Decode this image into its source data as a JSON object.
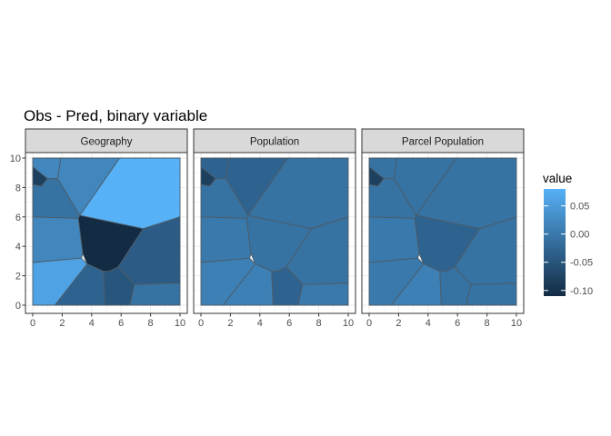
{
  "chart_data": {
    "type": "heatmap",
    "title": "Obs - Pred, binary variable",
    "xlabel": "",
    "ylabel": "",
    "xlim": [
      0,
      10
    ],
    "ylim": [
      0,
      10
    ],
    "x_ticks": [
      0,
      2,
      4,
      6,
      8,
      10
    ],
    "y_ticks": [
      0,
      2,
      4,
      6,
      8,
      10
    ],
    "grid": true,
    "legend": {
      "title": "value",
      "position": "right",
      "range": [
        -0.11,
        0.08
      ],
      "ticks": [
        0.05,
        0.0,
        -0.05,
        -0.1
      ],
      "tick_labels": [
        "0.05",
        "0.00",
        "-0.05",
        "-0.10"
      ],
      "low_color": "#132B43",
      "high_color": "#56B1F7"
    },
    "panels": [
      {
        "label": "Geography",
        "cells": [
          {
            "polygon": [
              [
                0,
                10
              ],
              [
                1.9,
                10
              ],
              [
                1.7,
                8.6
              ],
              [
                1,
                8.6
              ],
              [
                0,
                9.4
              ]
            ],
            "value": 0.02
          },
          {
            "polygon": [
              [
                0,
                9.4
              ],
              [
                1,
                8.6
              ],
              [
                0.6,
                8.1
              ],
              [
                0,
                8.2
              ]
            ],
            "value": -0.08
          },
          {
            "polygon": [
              [
                0,
                8.2
              ],
              [
                0.6,
                8.1
              ],
              [
                1,
                8.6
              ],
              [
                1.7,
                8.6
              ],
              [
                3.2,
                6.1
              ],
              [
                3.1,
                5.9
              ],
              [
                0,
                6
              ]
            ],
            "value": -0.01
          },
          {
            "polygon": [
              [
                1.9,
                10
              ],
              [
                5.9,
                10
              ],
              [
                3.2,
                6.1
              ],
              [
                1.7,
                8.6
              ]
            ],
            "value": 0.02
          },
          {
            "polygon": [
              [
                5.9,
                10
              ],
              [
                10,
                10
              ],
              [
                10,
                6
              ],
              [
                7.5,
                5.2
              ],
              [
                3.2,
                6.1
              ]
            ],
            "value": 0.08
          },
          {
            "polygon": [
              [
                0,
                6
              ],
              [
                3.1,
                5.9
              ],
              [
                3.4,
                3.5
              ],
              [
                3.3,
                3.2
              ],
              [
                0,
                2.9
              ]
            ],
            "value": 0.02
          },
          {
            "polygon": [
              [
                3.1,
                5.9
              ],
              [
                3.2,
                6.1
              ],
              [
                7.5,
                5.2
              ],
              [
                5.8,
                2.6
              ],
              [
                5.2,
                2.3
              ],
              [
                4.8,
                2.3
              ],
              [
                3.7,
                2.8
              ],
              [
                3.4,
                3.5
              ]
            ],
            "value": -0.11
          },
          {
            "polygon": [
              [
                7.5,
                5.2
              ],
              [
                10,
                6
              ],
              [
                10,
                1.5
              ],
              [
                6.9,
                1.4
              ],
              [
                5.8,
                2.6
              ]
            ],
            "value": -0.04
          },
          {
            "polygon": [
              [
                0,
                2.9
              ],
              [
                3.3,
                3.2
              ],
              [
                3.7,
                2.8
              ],
              [
                1.5,
                0
              ],
              [
                0,
                0
              ]
            ],
            "value": 0.06
          },
          {
            "polygon": [
              [
                3.7,
                2.8
              ],
              [
                4.8,
                2.3
              ],
              [
                4.9,
                0
              ],
              [
                1.5,
                0
              ]
            ],
            "value": -0.03
          },
          {
            "polygon": [
              [
                4.8,
                2.3
              ],
              [
                5.2,
                2.3
              ],
              [
                5.8,
                2.6
              ],
              [
                6.9,
                1.4
              ],
              [
                6.6,
                0
              ],
              [
                4.9,
                0
              ]
            ],
            "value": -0.05
          },
          {
            "polygon": [
              [
                6.9,
                1.4
              ],
              [
                10,
                1.5
              ],
              [
                10,
                0
              ],
              [
                6.6,
                0
              ]
            ],
            "value": -0.01
          }
        ]
      },
      {
        "label": "Population",
        "cells": [
          {
            "polygon": [
              [
                0,
                10
              ],
              [
                1.9,
                10
              ],
              [
                1.7,
                8.6
              ],
              [
                1,
                8.6
              ],
              [
                0,
                9.4
              ]
            ],
            "value": -0.03
          },
          {
            "polygon": [
              [
                0,
                9.4
              ],
              [
                1,
                8.6
              ],
              [
                0.6,
                8.1
              ],
              [
                0,
                8.2
              ]
            ],
            "value": -0.08
          },
          {
            "polygon": [
              [
                0,
                8.2
              ],
              [
                0.6,
                8.1
              ],
              [
                1,
                8.6
              ],
              [
                1.7,
                8.6
              ],
              [
                3.2,
                6.1
              ],
              [
                3.1,
                5.9
              ],
              [
                0,
                6
              ]
            ],
            "value": -0.01
          },
          {
            "polygon": [
              [
                1.9,
                10
              ],
              [
                5.9,
                10
              ],
              [
                3.2,
                6.1
              ],
              [
                1.7,
                8.6
              ]
            ],
            "value": -0.03
          },
          {
            "polygon": [
              [
                5.9,
                10
              ],
              [
                10,
                10
              ],
              [
                10,
                6
              ],
              [
                7.5,
                5.2
              ],
              [
                3.2,
                6.1
              ]
            ],
            "value": -0.01
          },
          {
            "polygon": [
              [
                0,
                6
              ],
              [
                3.1,
                5.9
              ],
              [
                3.4,
                3.5
              ],
              [
                3.3,
                3.2
              ],
              [
                0,
                2.9
              ]
            ],
            "value": 0.0
          },
          {
            "polygon": [
              [
                3.1,
                5.9
              ],
              [
                3.2,
                6.1
              ],
              [
                7.5,
                5.2
              ],
              [
                5.8,
                2.6
              ],
              [
                5.2,
                2.3
              ],
              [
                4.8,
                2.3
              ],
              [
                3.7,
                2.8
              ],
              [
                3.4,
                3.5
              ]
            ],
            "value": -0.01
          },
          {
            "polygon": [
              [
                7.5,
                5.2
              ],
              [
                10,
                6
              ],
              [
                10,
                1.5
              ],
              [
                6.9,
                1.4
              ],
              [
                5.8,
                2.6
              ]
            ],
            "value": -0.01
          },
          {
            "polygon": [
              [
                0,
                2.9
              ],
              [
                3.3,
                3.2
              ],
              [
                3.7,
                2.8
              ],
              [
                1.5,
                0
              ],
              [
                0,
                0
              ]
            ],
            "value": 0.01
          },
          {
            "polygon": [
              [
                3.7,
                2.8
              ],
              [
                4.8,
                2.3
              ],
              [
                4.9,
                0
              ],
              [
                1.5,
                0
              ]
            ],
            "value": 0.01
          },
          {
            "polygon": [
              [
                4.8,
                2.3
              ],
              [
                5.2,
                2.3
              ],
              [
                5.8,
                2.6
              ],
              [
                6.9,
                1.4
              ],
              [
                6.6,
                0
              ],
              [
                4.9,
                0
              ]
            ],
            "value": -0.03
          },
          {
            "polygon": [
              [
                6.9,
                1.4
              ],
              [
                10,
                1.5
              ],
              [
                10,
                0
              ],
              [
                6.6,
                0
              ]
            ],
            "value": 0.0
          }
        ]
      },
      {
        "label": "Parcel Population",
        "cells": [
          {
            "polygon": [
              [
                0,
                10
              ],
              [
                1.9,
                10
              ],
              [
                1.7,
                8.6
              ],
              [
                1,
                8.6
              ],
              [
                0,
                9.4
              ]
            ],
            "value": -0.01
          },
          {
            "polygon": [
              [
                0,
                9.4
              ],
              [
                1,
                8.6
              ],
              [
                0.6,
                8.1
              ],
              [
                0,
                8.2
              ]
            ],
            "value": -0.08
          },
          {
            "polygon": [
              [
                0,
                8.2
              ],
              [
                0.6,
                8.1
              ],
              [
                1,
                8.6
              ],
              [
                1.7,
                8.6
              ],
              [
                3.2,
                6.1
              ],
              [
                3.1,
                5.9
              ],
              [
                0,
                6
              ]
            ],
            "value": -0.01
          },
          {
            "polygon": [
              [
                1.9,
                10
              ],
              [
                5.9,
                10
              ],
              [
                3.2,
                6.1
              ],
              [
                1.7,
                8.6
              ]
            ],
            "value": -0.01
          },
          {
            "polygon": [
              [
                5.9,
                10
              ],
              [
                10,
                10
              ],
              [
                10,
                6
              ],
              [
                7.5,
                5.2
              ],
              [
                3.2,
                6.1
              ]
            ],
            "value": -0.01
          },
          {
            "polygon": [
              [
                0,
                6
              ],
              [
                3.1,
                5.9
              ],
              [
                3.4,
                3.5
              ],
              [
                3.3,
                3.2
              ],
              [
                0,
                2.9
              ]
            ],
            "value": 0.0
          },
          {
            "polygon": [
              [
                3.1,
                5.9
              ],
              [
                3.2,
                6.1
              ],
              [
                7.5,
                5.2
              ],
              [
                5.8,
                2.6
              ],
              [
                5.2,
                2.3
              ],
              [
                4.8,
                2.3
              ],
              [
                3.7,
                2.8
              ],
              [
                3.4,
                3.5
              ]
            ],
            "value": -0.03
          },
          {
            "polygon": [
              [
                7.5,
                5.2
              ],
              [
                10,
                6
              ],
              [
                10,
                1.5
              ],
              [
                6.9,
                1.4
              ],
              [
                5.8,
                2.6
              ]
            ],
            "value": -0.01
          },
          {
            "polygon": [
              [
                0,
                2.9
              ],
              [
                3.3,
                3.2
              ],
              [
                3.7,
                2.8
              ],
              [
                1.5,
                0
              ],
              [
                0,
                0
              ]
            ],
            "value": 0.0
          },
          {
            "polygon": [
              [
                3.7,
                2.8
              ],
              [
                4.8,
                2.3
              ],
              [
                4.9,
                0
              ],
              [
                1.5,
                0
              ]
            ],
            "value": 0.01
          },
          {
            "polygon": [
              [
                4.8,
                2.3
              ],
              [
                5.2,
                2.3
              ],
              [
                5.8,
                2.6
              ],
              [
                6.9,
                1.4
              ],
              [
                6.6,
                0
              ],
              [
                4.9,
                0
              ]
            ],
            "value": -0.01
          },
          {
            "polygon": [
              [
                6.9,
                1.4
              ],
              [
                10,
                1.5
              ],
              [
                10,
                0
              ],
              [
                6.6,
                0
              ]
            ],
            "value": -0.01
          }
        ]
      }
    ]
  }
}
